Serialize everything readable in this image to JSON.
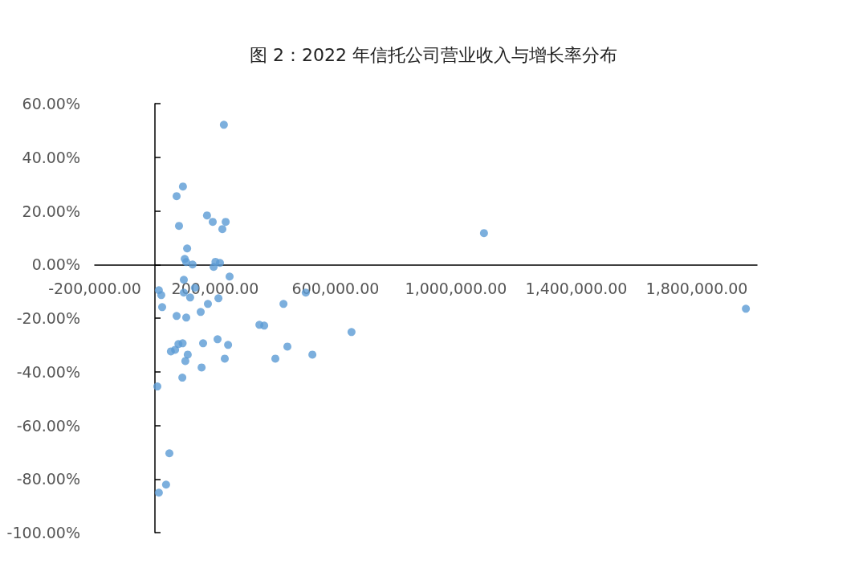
{
  "chart_data": {
    "type": "scatter",
    "title": "图 2：2022 年信托公司营业收入与增长率分布",
    "color": "#5b9bd5",
    "marker": "circle",
    "grid": false,
    "x": [
      229000,
      93000,
      72000,
      173000,
      192000,
      235000,
      224000,
      80000,
      107000,
      99000,
      104000,
      125000,
      201000,
      216000,
      195000,
      248000,
      96000,
      13000,
      21000,
      96000,
      117000,
      211000,
      133000,
      24000,
      176000,
      152000,
      72000,
      104000,
      501000,
      427000,
      347000,
      363000,
      653000,
      208000,
      160000,
      243000,
      78000,
      92000,
      440000,
      67000,
      53000,
      109000,
      523000,
      101000,
      232000,
      400000,
      155000,
      91000,
      8000,
      48000,
      37000,
      13000,
      1093000,
      1963000
    ],
    "values": [
      52.1,
      29.1,
      25.5,
      18.3,
      15.9,
      15.9,
      13.2,
      14.4,
      6.0,
      2.1,
      0.9,
      0,
      1.0,
      0.6,
      -0.9,
      -4.5,
      -5.7,
      -9.6,
      -11.4,
      -10.5,
      -12.3,
      -12.6,
      -8.7,
      -15.9,
      -14.7,
      -17.7,
      -19.2,
      -19.8,
      -10.5,
      -14.7,
      -22.5,
      -22.8,
      -25.2,
      -27.9,
      -29.4,
      -30.0,
      -29.7,
      -29.4,
      -30.6,
      -31.8,
      -32.4,
      -33.6,
      -33.6,
      -36.0,
      -35.1,
      -35.1,
      -38.4,
      -42.2,
      -45.5,
      -70.4,
      -82.1,
      -85.1,
      11.7,
      -16.5
    ],
    "xlim": [
      -200000,
      2000000
    ],
    "xticks": [
      {
        "value": -200000,
        "label": "-200,000.00"
      },
      {
        "value": 200000,
        "label": "200,000.00"
      },
      {
        "value": 600000,
        "label": "600,000.00"
      },
      {
        "value": 1000000,
        "label": "1,000,000.00"
      },
      {
        "value": 1400000,
        "label": "1,400,000.00"
      },
      {
        "value": 1800000,
        "label": "1,800,000.00"
      }
    ],
    "ylim": [
      -100,
      60
    ],
    "yticks": [
      {
        "value": -100,
        "label": "-100.00%"
      },
      {
        "value": -80,
        "label": "-80.00%"
      },
      {
        "value": -60,
        "label": "-60.00%"
      },
      {
        "value": -40,
        "label": "-40.00%"
      },
      {
        "value": -20,
        "label": "-20.00%"
      },
      {
        "value": 0,
        "label": "0.00%"
      },
      {
        "value": 20,
        "label": "20.00%"
      },
      {
        "value": 40,
        "label": "40.00%"
      },
      {
        "value": 60,
        "label": "60.00%"
      }
    ]
  }
}
